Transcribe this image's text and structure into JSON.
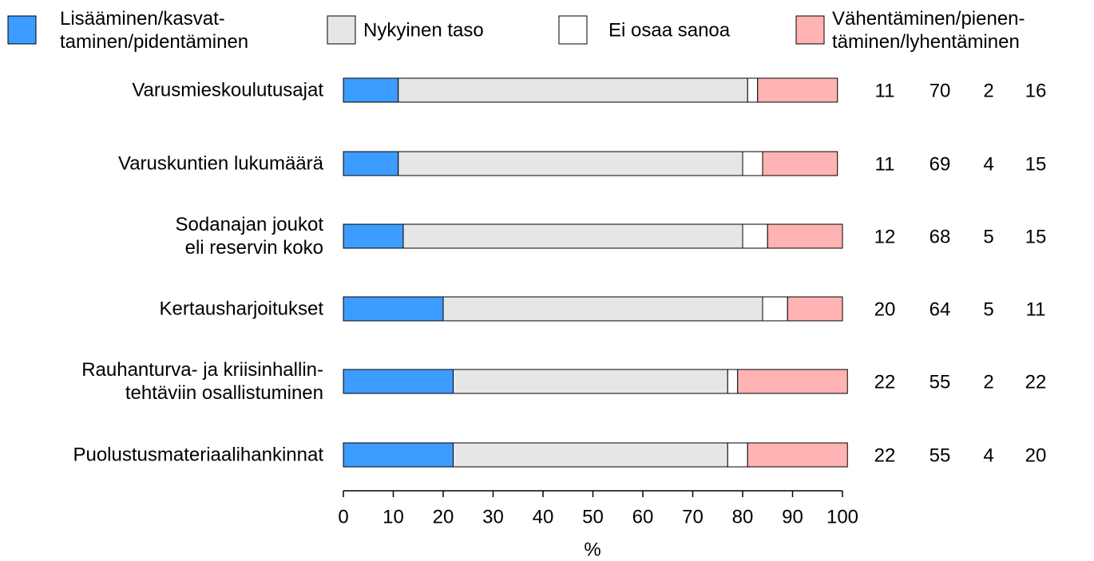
{
  "chart_data": {
    "type": "stacked-barh",
    "categories": [
      "Varusmieskoulutusajat",
      "Varuskuntien lukumäärä",
      "Sodanajan joukot\neli reservin koko",
      "Kertausharjoitukset",
      "Rauhanturva- ja kriisinhallin-\ntehtäviin osallistuminen",
      "Puolustusmateriaalihankinnat"
    ],
    "series": [
      {
        "name": "Lisääminen/kasvat-\ntaminen/pidentäminen",
        "color": "#3d9cff",
        "values": [
          11,
          11,
          12,
          20,
          22,
          22
        ]
      },
      {
        "name": "Nykyinen taso",
        "color": "#e6e6e6",
        "values": [
          70,
          69,
          68,
          64,
          55,
          55
        ]
      },
      {
        "name": "Ei osaa sanoa",
        "color": "#ffffff",
        "values": [
          2,
          4,
          5,
          5,
          2,
          4
        ]
      },
      {
        "name": "Vähentäminen/pienen-\ntäminen/lyhentäminen",
        "color": "#ffb3b3",
        "values": [
          16,
          15,
          15,
          11,
          22,
          20
        ]
      }
    ],
    "xlabel": "%",
    "xlim": [
      0,
      100
    ],
    "xticks": [
      0,
      10,
      20,
      30,
      40,
      50,
      60,
      70,
      80,
      90,
      100
    ]
  }
}
